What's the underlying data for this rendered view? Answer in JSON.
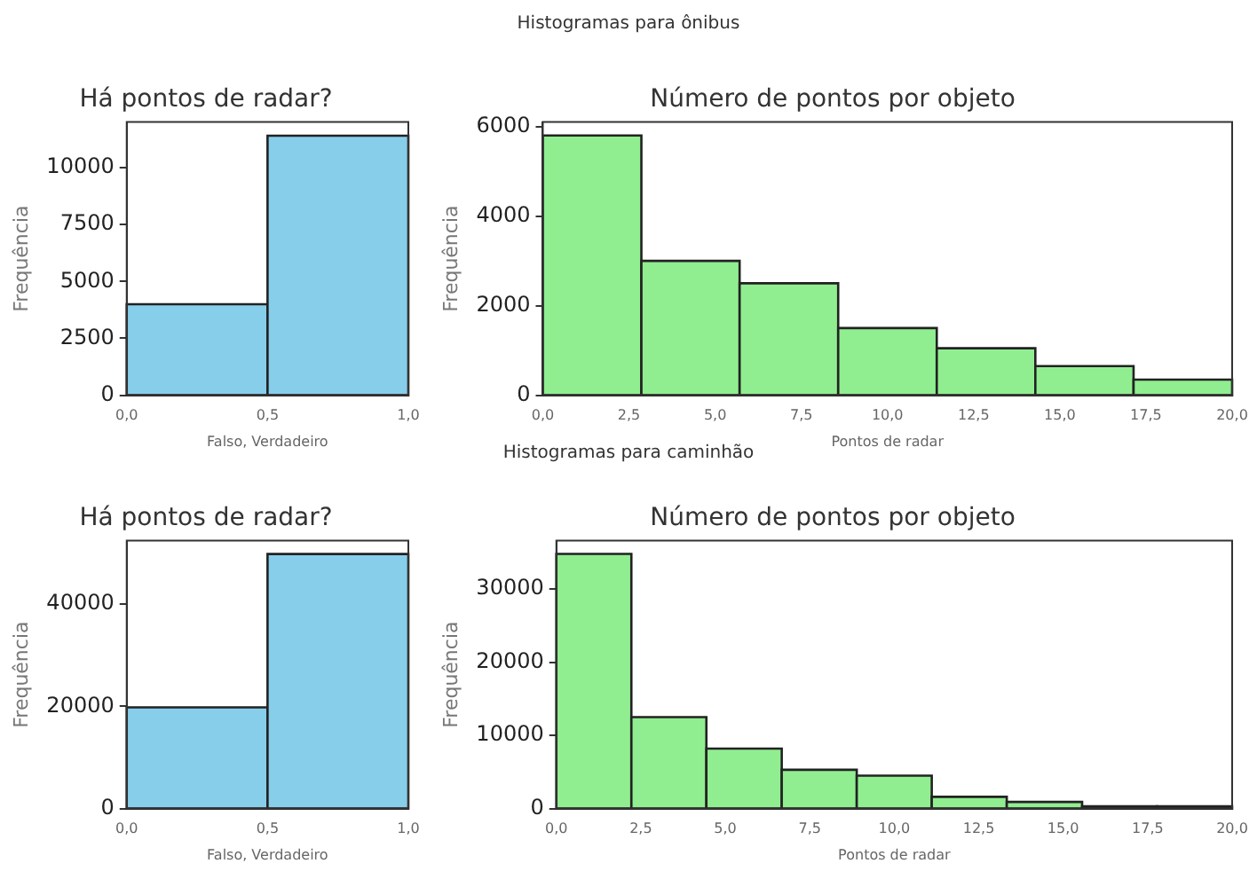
{
  "chart_data": [
    {
      "type": "histogram",
      "title": "Há pontos de radar?",
      "xlabel": "Falso, Verdadeiro",
      "ylabel": "Frequência",
      "annotations": [
        "Histogramas para ônibus"
      ],
      "bins": [
        0,
        0.5,
        1
      ],
      "values": [
        4000,
        11400
      ],
      "color": "#87ceeb",
      "xlim": [
        0,
        1
      ],
      "xticks": [
        {
          "value": 0,
          "label": "0,0"
        },
        {
          "value": 0.5,
          "label": "0,5"
        },
        {
          "value": 1,
          "label": "1,0"
        }
      ],
      "ylim": [
        0,
        12000
      ],
      "yticks": [
        0,
        2500,
        5000,
        7500,
        10000
      ]
    },
    {
      "type": "histogram",
      "title": "Número de pontos por objeto",
      "xlabel": "Pontos de radar",
      "ylabel": "Frequência",
      "bins": [
        0,
        2.86,
        5.71,
        8.57,
        11.43,
        14.29,
        17.14,
        20
      ],
      "values": [
        5800,
        3000,
        2500,
        1500,
        1050,
        650,
        350
      ],
      "color": "#90ee90",
      "xlim": [
        0,
        20
      ],
      "xticks": [
        {
          "value": 0,
          "label": "0,0"
        },
        {
          "value": 2.5,
          "label": "2,5"
        },
        {
          "value": 5,
          "label": "5,0"
        },
        {
          "value": 7.5,
          "label": "7,5"
        },
        {
          "value": 10,
          "label": "10,0"
        },
        {
          "value": 12.5,
          "label": "12,5"
        },
        {
          "value": 15,
          "label": "15,0"
        },
        {
          "value": 17.5,
          "label": "17,5"
        },
        {
          "value": 20,
          "label": "20,0"
        }
      ],
      "ylim": [
        0,
        6100
      ],
      "yticks": [
        0,
        2000,
        4000,
        6000
      ]
    },
    {
      "type": "histogram",
      "title": "Há pontos de radar?",
      "xlabel": "Falso, Verdadeiro",
      "ylabel": "Frequência",
      "annotations": [
        "Histogramas para caminhão"
      ],
      "bins": [
        0,
        0.5,
        1
      ],
      "values": [
        19800,
        49800
      ],
      "color": "#87ceeb",
      "xlim": [
        0,
        1
      ],
      "xticks": [
        {
          "value": 0,
          "label": "0,0"
        },
        {
          "value": 0.5,
          "label": "0,5"
        },
        {
          "value": 1,
          "label": "1,0"
        }
      ],
      "ylim": [
        0,
        52400
      ],
      "yticks": [
        0,
        20000,
        40000
      ]
    },
    {
      "type": "histogram",
      "title": "Número de pontos por objeto",
      "xlabel": "Pontos de radar",
      "ylabel": "Frequência",
      "bins": [
        0,
        2.22,
        4.44,
        6.67,
        8.89,
        11.11,
        13.33,
        15.56,
        17.78,
        20
      ],
      "values": [
        34800,
        12500,
        8200,
        5300,
        4500,
        1600,
        900,
        300,
        300
      ],
      "color": "#90ee90",
      "xlim": [
        0,
        20
      ],
      "xticks": [
        {
          "value": 0,
          "label": "0,0"
        },
        {
          "value": 2.5,
          "label": "2,5"
        },
        {
          "value": 5,
          "label": "5,0"
        },
        {
          "value": 7.5,
          "label": "7,5"
        },
        {
          "value": 10,
          "label": "10,0"
        },
        {
          "value": 12.5,
          "label": "12,5"
        },
        {
          "value": 15,
          "label": "15,0"
        },
        {
          "value": 17.5,
          "label": "17,5"
        },
        {
          "value": 20,
          "label": "20,0"
        }
      ],
      "ylim": [
        0,
        36600
      ],
      "yticks": [
        0,
        10000,
        20000,
        30000
      ]
    }
  ]
}
